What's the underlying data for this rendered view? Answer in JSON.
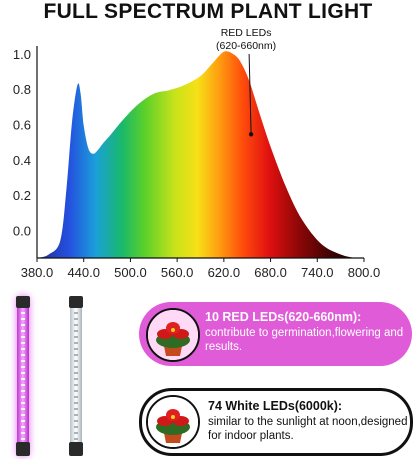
{
  "title": "FULL SPECTRUM PLANT LIGHT",
  "chart_data": {
    "type": "area",
    "xlim": [
      380.0,
      800.0
    ],
    "ylim": [
      -0.15,
      1.05
    ],
    "x_ticks": [
      "380.0",
      "440.0",
      "500.0",
      "560.0",
      "620.0",
      "680.0",
      "740.0",
      "800.0"
    ],
    "y_ticks": [
      "1.0",
      "0.8",
      "0.6",
      "0.4",
      "0.2",
      "0.0"
    ],
    "x_tick_values": [
      380,
      440,
      500,
      560,
      620,
      680,
      740,
      800
    ],
    "y_tick_values": [
      1.0,
      0.8,
      0.6,
      0.4,
      0.2,
      0.0
    ],
    "series": [
      {
        "x": [
          380,
          395,
          410,
          418,
          425,
          432,
          436,
          440,
          446,
          452,
          458,
          465,
          475,
          490,
          510,
          530,
          550,
          570,
          590,
          605,
          615,
          622,
          630,
          640,
          652,
          665,
          680,
          700,
          720,
          745,
          770,
          790,
          800
        ],
        "y": [
          -0.15,
          -0.13,
          -0.05,
          0.25,
          0.62,
          0.83,
          0.78,
          0.6,
          0.47,
          0.44,
          0.46,
          0.5,
          0.55,
          0.63,
          0.72,
          0.78,
          0.8,
          0.83,
          0.88,
          0.95,
          1.0,
          1.02,
          1.01,
          0.97,
          0.86,
          0.68,
          0.48,
          0.25,
          0.07,
          -0.07,
          -0.13,
          -0.15,
          -0.15
        ]
      }
    ],
    "annotation": {
      "label_line1": "RED LEDs",
      "label_line2": "(620-660nm)",
      "x": 655,
      "y": 0.55
    }
  },
  "features": [
    {
      "title": "10 RED LEDs(620-660nm):",
      "description": "contribute to germination,flowering and results."
    },
    {
      "title": "74 White LEDs(6000k):",
      "description": "similar to the sunlight at noon,designed  for indoor plants."
    }
  ],
  "colors": {
    "red_box": "#e05bd8",
    "red_tube": "#f4a8ff",
    "white_box_border": "#111111"
  }
}
